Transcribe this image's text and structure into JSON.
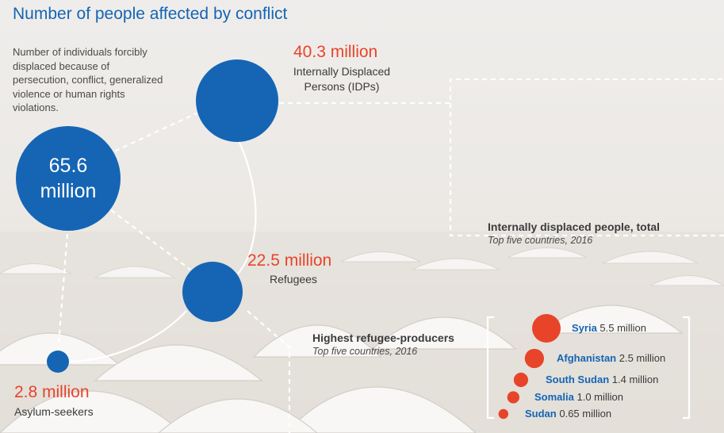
{
  "title": "Number of people affected by conflict",
  "description": "Number of individuals forcibly displaced because of persecution, conflict, generalized violence or human rights violations.",
  "total": {
    "value_line1": "65.6",
    "value_line2": "million",
    "value_millions": 65.6
  },
  "idps": {
    "value": "40.3 million",
    "label_line1": "Internally Displaced",
    "label_line2": "Persons (IDPs)",
    "value_millions": 40.3
  },
  "refugees": {
    "value": "22.5 million",
    "label": "Refugees",
    "value_millions": 22.5
  },
  "asylum": {
    "value": "2.8 million",
    "label": "Asylum-seekers",
    "value_millions": 2.8
  },
  "idp_section": {
    "title": "Internally displaced people, total",
    "subtitle": "Top five countries, 2016"
  },
  "refugee_section": {
    "title": "Highest refugee-producers",
    "subtitle": "Top five countries, 2016"
  },
  "colors": {
    "blue": "#1565b4",
    "red": "#e8442a",
    "text": "#3a3a3a"
  },
  "chart_data": {
    "type": "bubble",
    "title": "Highest refugee-producers",
    "subtitle": "Top five countries, 2016",
    "unit": "million",
    "categories": [
      "Syria",
      "Afghanistan",
      "South Sudan",
      "Somalia",
      "Sudan"
    ],
    "values": [
      5.5,
      2.5,
      1.4,
      1.0,
      0.65
    ],
    "value_labels": [
      "5.5 million",
      "2.5 million",
      "1.4 million",
      "1.0 million",
      "0.65 million"
    ]
  }
}
